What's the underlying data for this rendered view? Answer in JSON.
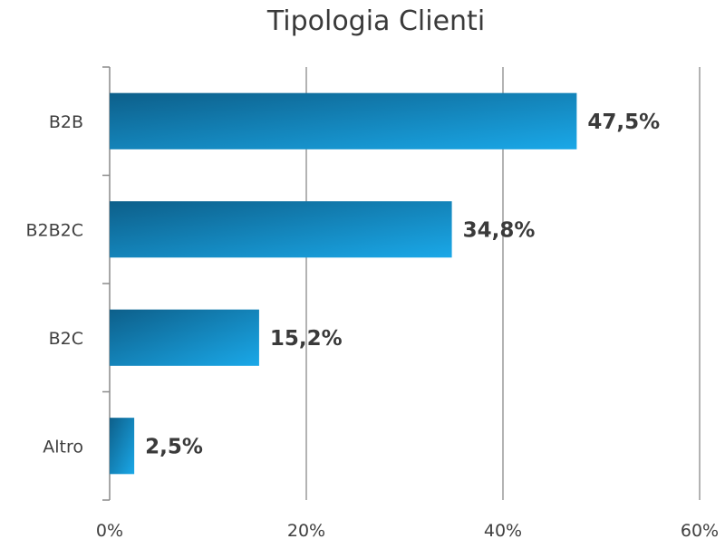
{
  "chart_data": {
    "type": "bar",
    "orientation": "horizontal",
    "title": "Tipologia Clienti",
    "categories": [
      "B2B",
      "B2B2C",
      "B2C",
      "Altro"
    ],
    "values": [
      47.5,
      34.8,
      15.2,
      2.5
    ],
    "data_labels": [
      "47,5%",
      "34,8%",
      "15,2%",
      "2,5%"
    ],
    "x_ticks": [
      "0%",
      "20%",
      "40%",
      "60%"
    ],
    "xlim": [
      0,
      60
    ],
    "xlabel": "",
    "ylabel": "",
    "grid": "vertical",
    "legend": "none",
    "bar_color_dark": "#0d5f8a",
    "bar_color_light": "#1aa8e8"
  }
}
